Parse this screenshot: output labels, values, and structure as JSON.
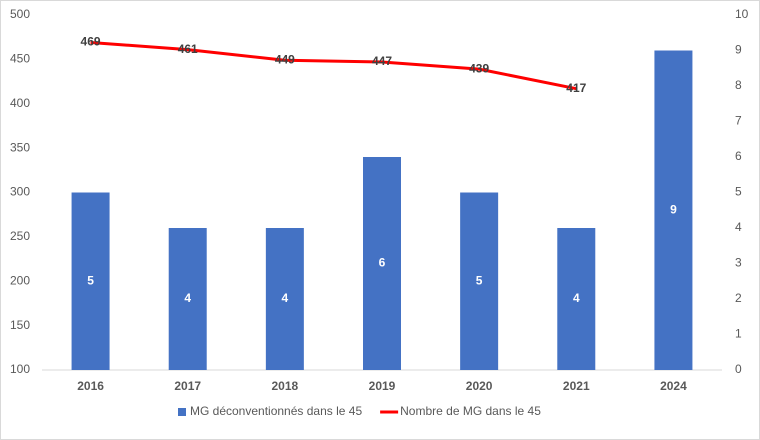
{
  "chart_data": {
    "type": "bar_line",
    "categories": [
      "2016",
      "2017",
      "2018",
      "2019",
      "2020",
      "2021",
      "2024"
    ],
    "series": [
      {
        "name": "MG déconventionnés dans le 45",
        "type": "bar",
        "axis": "y2",
        "color": "#4472c4",
        "values": [
          5,
          4,
          4,
          6,
          5,
          4,
          9
        ]
      },
      {
        "name": "Nombre de MG dans le 45",
        "type": "line",
        "axis": "y",
        "color": "#ff0000",
        "values": [
          469,
          461,
          449,
          447,
          439,
          417,
          null
        ]
      }
    ],
    "ylim": [
      100,
      500
    ],
    "yticks": [
      100,
      150,
      200,
      250,
      300,
      350,
      400,
      450,
      500
    ],
    "y2lim": [
      0,
      10
    ],
    "y2ticks": [
      0,
      1,
      2,
      3,
      4,
      5,
      6,
      7,
      8,
      9,
      10
    ],
    "grid": false,
    "legend": "bottom"
  }
}
